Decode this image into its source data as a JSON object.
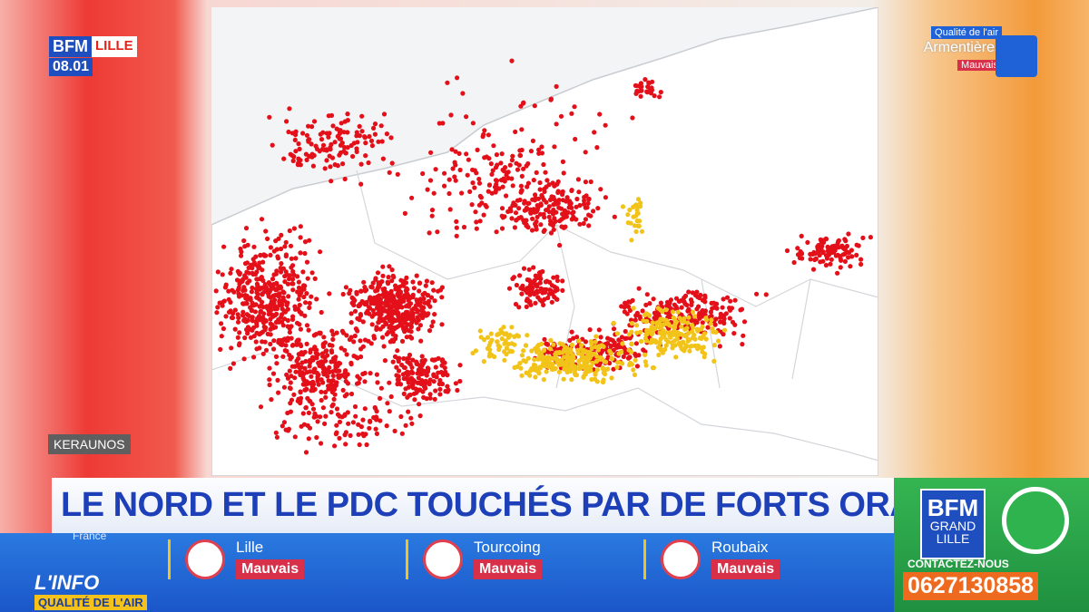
{
  "channel": {
    "logo": "BFM",
    "region": "LILLE",
    "time": "08.01"
  },
  "air_quality_badge": {
    "label": "Qualité de l'air",
    "city": "Armentières",
    "status": "Mauvais"
  },
  "map": {
    "source": "KERAUNOS"
  },
  "headline": "LE NORD ET LE PDC TOUCHÉS PAR DE FORTS ORAGES",
  "ticker": {
    "region": "France",
    "program": {
      "line1": "L'INFO",
      "line2": "QUALITÉ DE L'AIR"
    },
    "cities": [
      {
        "name": "Lille",
        "status": "Mauvais"
      },
      {
        "name": "Tourcoing",
        "status": "Mauvais"
      },
      {
        "name": "Roubaix",
        "status": "Mauvais"
      }
    ]
  },
  "sidebar": {
    "logo": [
      "BFM",
      "GRAND",
      "LILLE"
    ],
    "contact_label": "CONTACTEZ-NOUS",
    "phone": "0627130858"
  }
}
